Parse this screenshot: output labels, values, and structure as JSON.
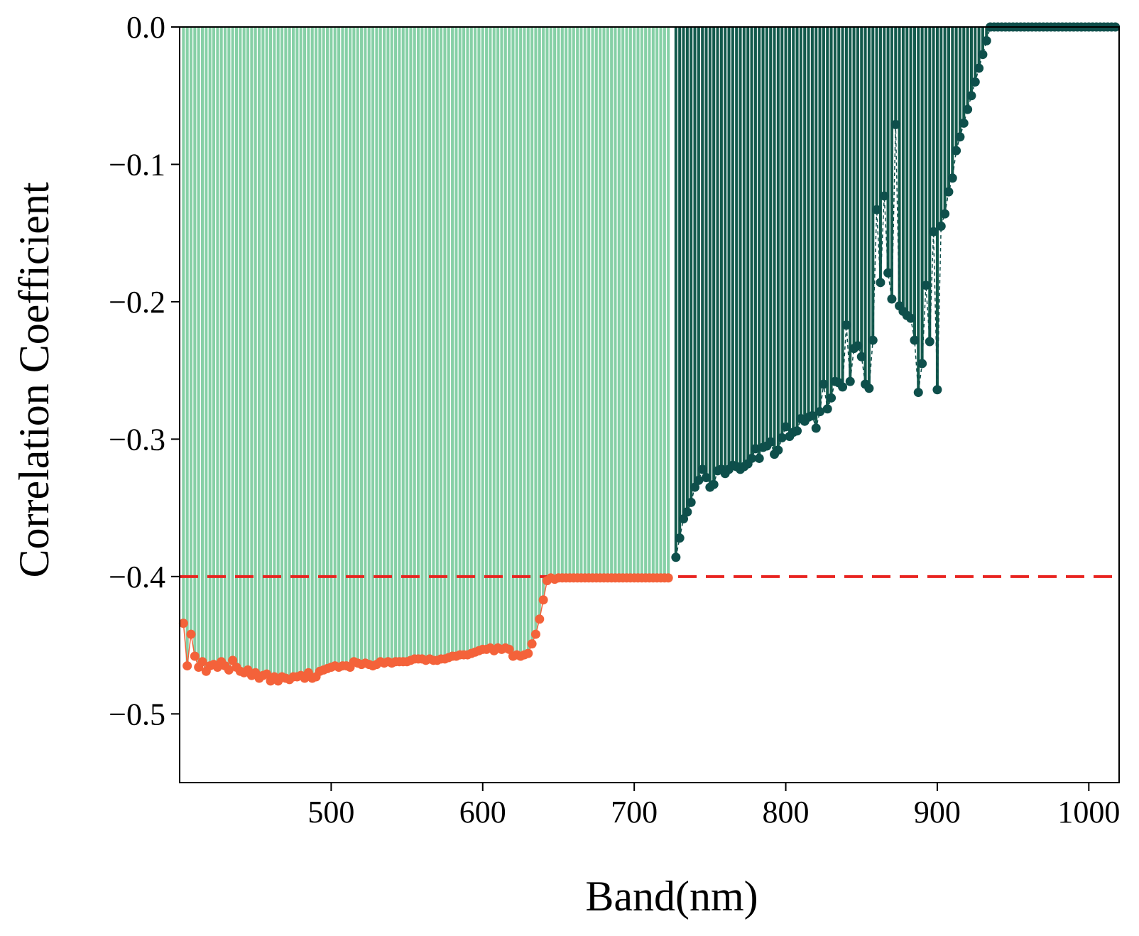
{
  "chart_data": {
    "type": "bar",
    "xlabel": "Band(nm)",
    "ylabel": "Correlation Coefficient",
    "xlim": [
      400,
      1020
    ],
    "ylim": [
      -0.55,
      0.0
    ],
    "xticks": [
      500,
      600,
      700,
      800,
      900,
      1000
    ],
    "yticks": [
      0.0,
      -0.1,
      -0.2,
      -0.3,
      -0.4,
      -0.5
    ],
    "xtick_labels": [
      "500",
      "600",
      "700",
      "800",
      "900",
      "1000"
    ],
    "ytick_labels": [
      "0.0",
      "−0.1",
      "−0.2",
      "−0.3",
      "−0.4",
      "−0.5"
    ],
    "threshold": -0.4,
    "grid": false,
    "colors": {
      "bar_selected": "#86d0a6",
      "bar_other": "#135a4c",
      "marker_selected": "#f4623a",
      "marker_other": "#0e4f4b",
      "threshold_line": "#e8231f"
    },
    "series": [
      {
        "x": [
          402.5,
          405.0,
          407.5,
          410.0,
          412.5,
          415.0,
          417.5,
          420.0,
          422.5,
          425.0,
          427.5,
          430.0,
          432.5,
          435.0,
          437.5,
          440.0,
          442.5,
          445.0,
          447.5,
          450.0,
          452.5,
          455.0,
          457.5,
          460.0,
          462.5,
          465.0,
          467.5,
          470.0,
          472.5,
          475.0,
          477.5,
          480.0,
          482.5,
          485.0,
          487.5,
          490.0,
          492.5,
          495.0,
          497.5,
          500.0,
          502.5,
          505.0,
          507.5,
          510.0,
          512.5,
          515.0,
          517.5,
          520.0,
          522.5,
          525.0,
          527.5,
          530.0,
          532.5,
          535.0,
          537.5,
          540.0,
          542.5,
          545.0,
          547.5,
          550.0,
          552.5,
          555.0,
          557.5,
          560.0,
          562.5,
          565.0,
          567.5,
          570.0,
          572.5,
          575.0,
          577.5,
          580.0,
          582.5,
          585.0,
          587.5,
          590.0,
          592.5,
          595.0,
          597.5,
          600.0,
          602.5,
          605.0,
          607.5,
          610.0,
          612.5,
          615.0,
          617.5,
          620.0,
          622.5,
          625.0,
          627.5,
          630.0,
          632.5,
          635.0,
          637.5,
          640.0,
          642.5,
          645.0,
          647.5,
          650.0,
          652.5,
          655.0,
          657.5,
          660.0,
          662.5,
          665.0,
          667.5,
          670.0,
          672.5,
          675.0,
          677.5,
          680.0,
          682.5,
          685.0,
          687.5,
          690.0,
          692.5,
          695.0,
          697.5,
          700.0,
          702.5,
          705.0,
          707.5,
          710.0,
          712.5,
          715.0,
          717.5,
          720.0,
          722.5
        ],
        "y": [
          -0.434,
          -0.465,
          -0.442,
          -0.458,
          -0.466,
          -0.462,
          -0.469,
          -0.465,
          -0.464,
          -0.466,
          -0.462,
          -0.465,
          -0.468,
          -0.461,
          -0.466,
          -0.469,
          -0.47,
          -0.468,
          -0.472,
          -0.47,
          -0.474,
          -0.472,
          -0.471,
          -0.476,
          -0.473,
          -0.476,
          -0.473,
          -0.474,
          -0.475,
          -0.473,
          -0.473,
          -0.472,
          -0.474,
          -0.47,
          -0.474,
          -0.473,
          -0.469,
          -0.468,
          -0.467,
          -0.466,
          -0.465,
          -0.466,
          -0.465,
          -0.465,
          -0.466,
          -0.462,
          -0.463,
          -0.464,
          -0.463,
          -0.464,
          -0.465,
          -0.464,
          -0.462,
          -0.463,
          -0.462,
          -0.463,
          -0.462,
          -0.462,
          -0.462,
          -0.462,
          -0.461,
          -0.46,
          -0.46,
          -0.46,
          -0.461,
          -0.46,
          -0.461,
          -0.461,
          -0.46,
          -0.46,
          -0.459,
          -0.458,
          -0.458,
          -0.457,
          -0.457,
          -0.457,
          -0.456,
          -0.455,
          -0.454,
          -0.453,
          -0.453,
          -0.452,
          -0.454,
          -0.452,
          -0.453,
          -0.452,
          -0.453,
          -0.458,
          -0.457,
          -0.458,
          -0.457,
          -0.456,
          -0.449,
          -0.442,
          -0.431,
          -0.417,
          -0.403,
          -0.401,
          -0.402,
          -0.401,
          -0.401,
          -0.401,
          -0.401,
          -0.401,
          -0.401,
          -0.401,
          -0.401,
          -0.401,
          -0.401,
          -0.401,
          -0.401,
          -0.401,
          -0.401,
          -0.401,
          -0.401,
          -0.401,
          -0.401,
          -0.401,
          -0.401,
          -0.401,
          -0.401,
          -0.401,
          -0.401,
          -0.401,
          -0.401,
          -0.401,
          -0.401,
          -0.401,
          -0.401
        ]
      },
      {
        "x": [
          727.5,
          730.0,
          732.5,
          735.0,
          737.5,
          740.0,
          742.5,
          745.0,
          747.5,
          750.0,
          752.5,
          755.0,
          757.5,
          760.0,
          762.5,
          765.0,
          767.5,
          770.0,
          772.5,
          775.0,
          777.5,
          780.0,
          782.5,
          785.0,
          787.5,
          790.0,
          792.5,
          795.0,
          797.5,
          800.0,
          802.5,
          805.0,
          807.5,
          810.0,
          812.5,
          815.0,
          817.5,
          820.0,
          822.5,
          825.0,
          827.5,
          830.0,
          832.5,
          835.0,
          837.5,
          840.0,
          842.5,
          845.0,
          847.5,
          850.0,
          852.5,
          855.0,
          857.5,
          860.0,
          862.5,
          865.0,
          867.5,
          870.0,
          872.5,
          875.0,
          877.5,
          880.0,
          882.5,
          885.0,
          887.5,
          890.0,
          892.5,
          895.0,
          897.5,
          900.0,
          902.5,
          905.0,
          907.5,
          910.0,
          912.5,
          915.0,
          917.5,
          920.0,
          922.5,
          925.0,
          927.5,
          930.0,
          932.5,
          935.0,
          937.5,
          940.0,
          942.5,
          945.0,
          947.5,
          950.0,
          952.5,
          955.0,
          957.5,
          960.0,
          962.5,
          965.0,
          967.5,
          970.0,
          972.5,
          975.0,
          977.5,
          980.0,
          982.5,
          985.0,
          987.5,
          990.0,
          992.5,
          995.0,
          997.5,
          1000.0,
          1002.5,
          1005.0,
          1007.5,
          1010.0,
          1012.5,
          1015.0,
          1017.5
        ],
        "y": [
          -0.386,
          -0.372,
          -0.358,
          -0.353,
          -0.346,
          -0.335,
          -0.33,
          -0.322,
          -0.328,
          -0.335,
          -0.333,
          -0.323,
          -0.322,
          -0.325,
          -0.322,
          -0.319,
          -0.32,
          -0.322,
          -0.32,
          -0.318,
          -0.314,
          -0.307,
          -0.314,
          -0.306,
          -0.305,
          -0.302,
          -0.311,
          -0.308,
          -0.299,
          -0.291,
          -0.298,
          -0.295,
          -0.294,
          -0.285,
          -0.287,
          -0.284,
          -0.283,
          -0.292,
          -0.28,
          -0.26,
          -0.278,
          -0.27,
          -0.258,
          -0.259,
          -0.262,
          -0.217,
          -0.258,
          -0.234,
          -0.232,
          -0.24,
          -0.26,
          -0.263,
          -0.228,
          -0.133,
          -0.186,
          -0.123,
          -0.179,
          -0.198,
          -0.071,
          -0.203,
          -0.207,
          -0.21,
          -0.212,
          -0.228,
          -0.266,
          -0.245,
          -0.188,
          -0.229,
          -0.149,
          -0.264,
          -0.145,
          -0.136,
          -0.12,
          -0.11,
          -0.09,
          -0.08,
          -0.07,
          -0.06,
          -0.05,
          -0.04,
          -0.03,
          -0.02,
          -0.01,
          0.0,
          0.0,
          0.0,
          0.0,
          0.0,
          0.0,
          0.0,
          0.0,
          0.0,
          0.0,
          0.0,
          0.0,
          0.0,
          0.0,
          0.0,
          0.0,
          0.0,
          0.0,
          0.0,
          0.0,
          0.0,
          0.0,
          0.0,
          0.0,
          0.0,
          0.0,
          0.0,
          0.0,
          0.0,
          0.0,
          0.0,
          0.0,
          0.0,
          0.0
        ]
      }
    ]
  }
}
